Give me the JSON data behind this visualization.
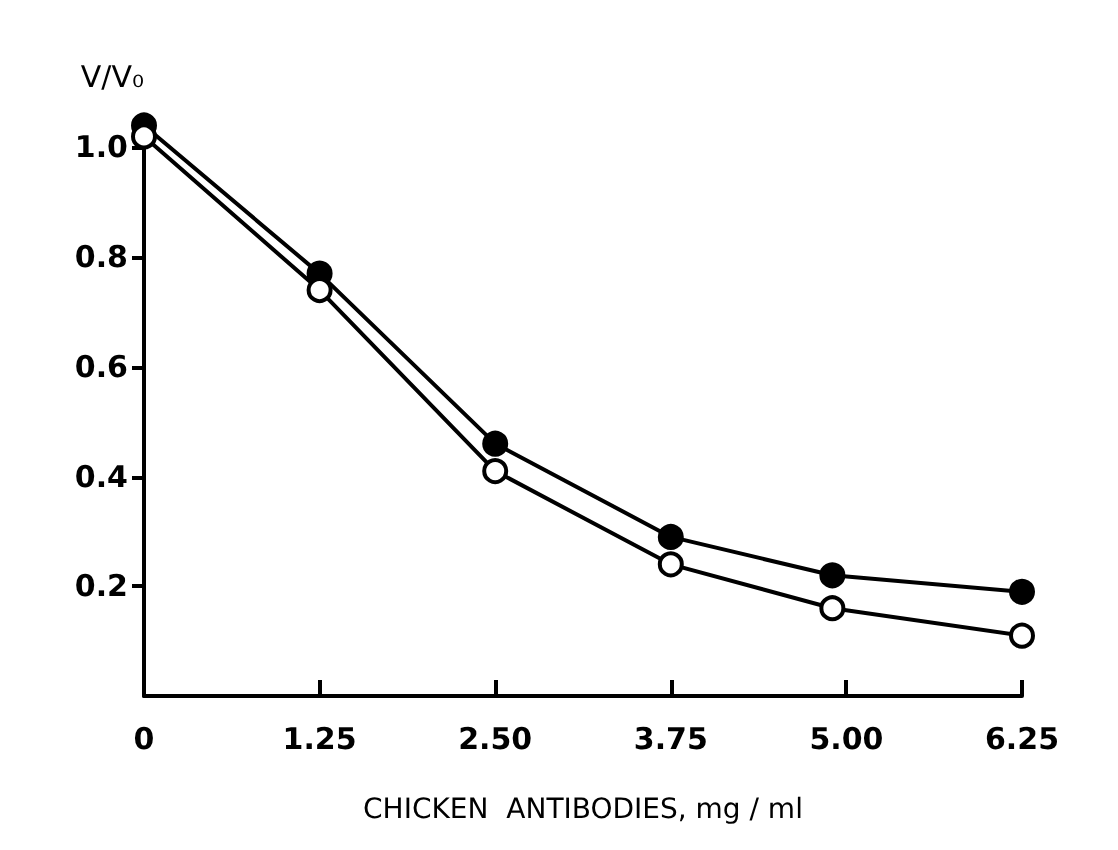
{
  "chart_data": {
    "type": "line",
    "xlabel": "CHICKEN  ANTIBODIES, mg / ml",
    "ylabel": "V/V₀",
    "x": [
      0,
      1.25,
      2.5,
      3.75,
      4.9,
      6.25
    ],
    "series": [
      {
        "color": "#000000",
        "values": [
          1.04,
          0.77,
          0.46,
          0.29,
          0.22,
          0.19
        ]
      },
      {
        "color": "#000000",
        "values": [
          1.02,
          0.74,
          0.41,
          0.24,
          0.16,
          0.11
        ]
      }
    ],
    "xlim": [
      0,
      6.25
    ],
    "xticks": [
      0,
      1.25,
      {
        "value": 2.5,
        "label": "2.50"
      },
      3.75,
      {
        "value": 5,
        "label": "5.00"
      },
      6.25
    ],
    "ylim": [
      0,
      1.05
    ],
    "yticks": [
      0.2,
      0.4,
      0.6,
      0.8,
      {
        "value": 1,
        "label": "1.0"
      }
    ],
    "marker": "circle",
    "line_style": "solid"
  }
}
